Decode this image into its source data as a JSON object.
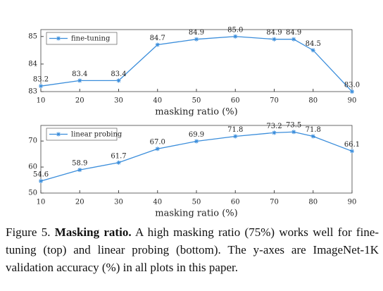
{
  "chart_data": [
    {
      "type": "line",
      "x_label": "masking ratio (%)",
      "x": [
        10,
        20,
        30,
        40,
        50,
        60,
        70,
        75,
        80,
        90
      ],
      "series": [
        {
          "name": "fine-tuning",
          "color": "#3a8ddb",
          "values": [
            83.2,
            83.4,
            83.4,
            84.7,
            84.9,
            85.0,
            84.9,
            84.9,
            84.5,
            83.0
          ],
          "value_labels": [
            "83.2",
            "83.4",
            "83.4",
            "84.7",
            "84.9",
            "85.0",
            "84.9",
            "84.9",
            "84.5",
            "83.0"
          ]
        }
      ],
      "xlim": [
        10,
        90
      ],
      "xticks": [
        10,
        20,
        30,
        40,
        50,
        60,
        70,
        80,
        90
      ],
      "ylim": [
        83,
        85.25
      ],
      "yticks": [
        83,
        84,
        85
      ],
      "legend": "upper left"
    },
    {
      "type": "line",
      "x_label": "masking ratio (%)",
      "x": [
        10,
        20,
        30,
        40,
        50,
        60,
        70,
        75,
        80,
        90
      ],
      "series": [
        {
          "name": "linear probing",
          "color": "#3a8ddb",
          "values": [
            54.6,
            58.9,
            61.7,
            67.0,
            69.9,
            71.8,
            73.2,
            73.5,
            71.8,
            66.1
          ],
          "value_labels": [
            "54.6",
            "58.9",
            "61.7",
            "67.0",
            "69.9",
            "71.8",
            "73.2",
            "73.5",
            "71.8",
            "66.1"
          ]
        }
      ],
      "xlim": [
        10,
        90
      ],
      "xticks": [
        10,
        20,
        30,
        40,
        50,
        60,
        70,
        80,
        90
      ],
      "ylim": [
        50,
        76
      ],
      "yticks": [
        50,
        60,
        70
      ],
      "legend": "upper left"
    }
  ],
  "caption": {
    "label": "Figure 5.",
    "title": "Masking ratio.",
    "text": "A high masking ratio (75%) works well for fine-tuning (top) and linear probing (bottom). The y-axes are ImageNet-1K validation accuracy (%) in all plots in this paper."
  }
}
